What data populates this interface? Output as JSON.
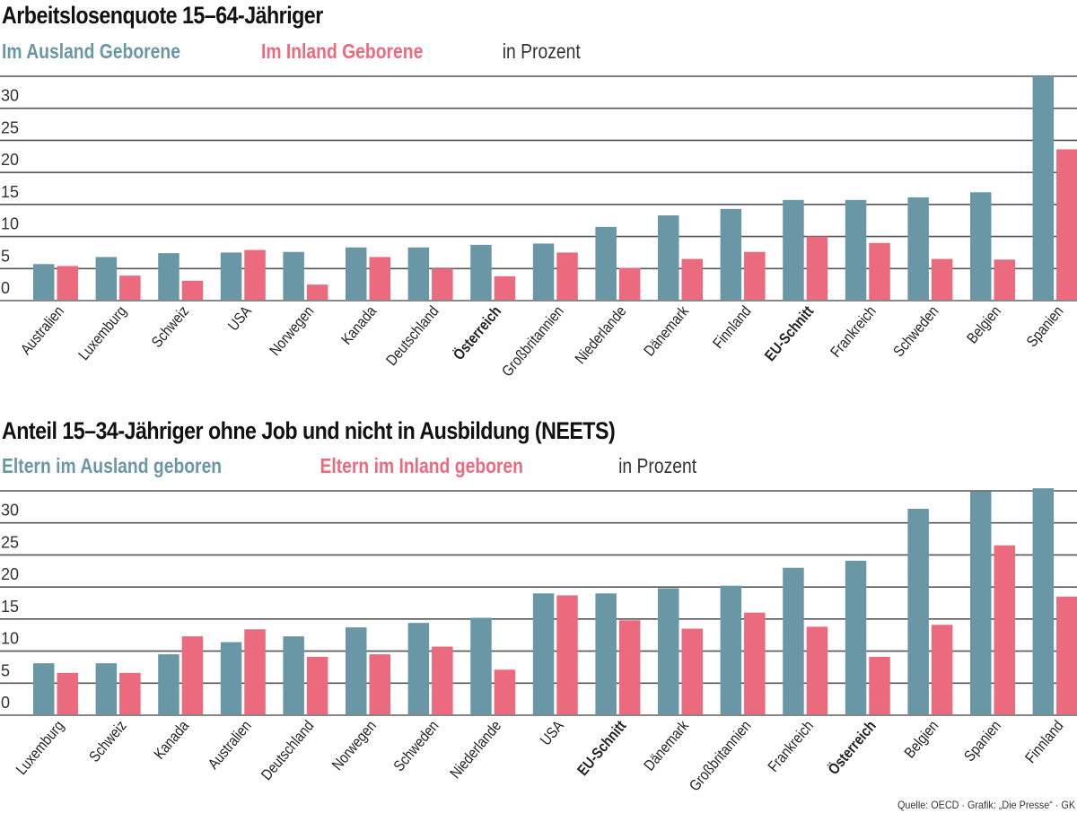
{
  "colors": {
    "abroad": "#6a97a6",
    "domestic": "#ec6a7d",
    "grid": "#555555",
    "baseline": "#888888"
  },
  "chart_data": [
    {
      "type": "bar",
      "title": "Arbeitslosenquote 15–64-Jähriger",
      "unit_label": "in Prozent",
      "xlabel": "",
      "ylabel": "",
      "ylim": [
        0,
        35
      ],
      "yticks": [
        0,
        5,
        10,
        15,
        20,
        25,
        30
      ],
      "grid": true,
      "legend_position": "top-left",
      "categories": [
        "Australien",
        "Luxemburg",
        "Schweiz",
        "USA",
        "Norwegen",
        "Kanada",
        "Deutschland",
        "Österreich",
        "Großbritannien",
        "Niederlande",
        "Dänemark",
        "Finnland",
        "EU-Schnitt",
        "Frankreich",
        "Schweden",
        "Belgien",
        "Spanien"
      ],
      "highlighted": [
        "Österreich",
        "EU-Schnitt"
      ],
      "series": [
        {
          "name": "Im Ausland Geborene",
          "color_key": "abroad",
          "values": [
            5.7,
            6.8,
            7.4,
            7.5,
            7.6,
            8.3,
            8.3,
            8.7,
            8.9,
            11.5,
            13.3,
            14.3,
            15.7,
            15.7,
            16.1,
            16.9,
            35.0
          ]
        },
        {
          "name": "Im Inland Geborene",
          "color_key": "domestic",
          "values": [
            5.4,
            3.9,
            3.1,
            7.9,
            2.5,
            6.8,
            5.0,
            3.8,
            7.5,
            5.1,
            6.5,
            7.6,
            10.0,
            9.0,
            6.5,
            6.4,
            23.6
          ]
        }
      ]
    },
    {
      "type": "bar",
      "title": "Anteil 15–34-Jähriger ohne Job und nicht in Ausbildung (NEETS)",
      "unit_label": "in Prozent",
      "xlabel": "",
      "ylabel": "",
      "ylim": [
        0,
        35
      ],
      "yticks": [
        0,
        5,
        10,
        15,
        20,
        25,
        30
      ],
      "grid": true,
      "legend_position": "top-left",
      "categories": [
        "Luxemburg",
        "Schweiz",
        "Kanada",
        "Australien",
        "Deutschland",
        "Norwegen",
        "Schweden",
        "Niederlande",
        "USA",
        "EU-Schnitt",
        "Dänemark",
        "Großbritannien",
        "Frankreich",
        "Österreich",
        "Belgien",
        "Spanien",
        "Finnland"
      ],
      "highlighted": [
        "EU-Schnitt",
        "Österreich"
      ],
      "series": [
        {
          "name": "Eltern im Ausland geboren",
          "color_key": "abroad",
          "values": [
            8.1,
            8.1,
            9.5,
            11.4,
            12.3,
            13.7,
            14.4,
            15.2,
            19.0,
            19.0,
            19.8,
            20.2,
            23.0,
            24.1,
            32.2,
            34.9,
            35.4
          ]
        },
        {
          "name": "Eltern im Inland geboren",
          "color_key": "domestic",
          "values": [
            6.6,
            6.6,
            12.3,
            13.4,
            9.1,
            9.5,
            10.7,
            7.1,
            18.7,
            14.8,
            13.5,
            16.0,
            13.8,
            9.1,
            14.1,
            26.5,
            18.5
          ]
        }
      ]
    }
  ],
  "source": "Quelle: OECD · Grafik: „Die Presse“ · GK"
}
